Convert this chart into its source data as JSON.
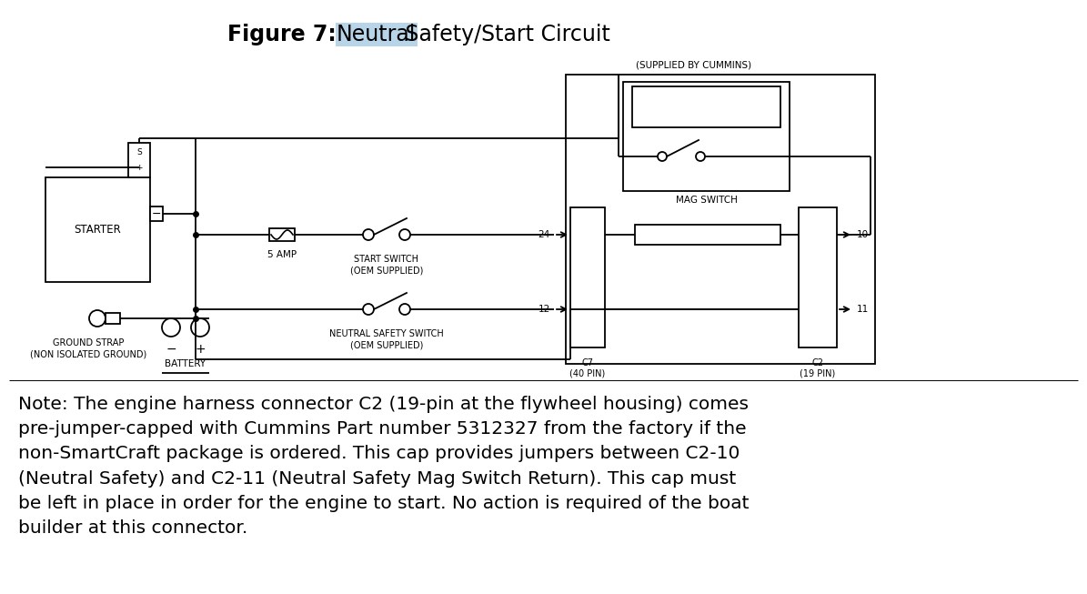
{
  "bg_color": "#ffffff",
  "line_color": "#000000",
  "highlight_color": "#b8d4e8",
  "note_text": "Note: The engine harness connector C2 (19-pin at the flywheel housing) comes\npre-jumper-capped with Cummins Part number 5312327 from the factory if the\nnon-SmartCraft package is ordered. This cap provides jumpers between C2-10\n(Neutral Safety) and C2-11 (Neutral Safety Mag Switch Return). This cap must\nbe left in place in order for the engine to start. No action is required of the boat\nbuilder at this connector.",
  "supplied_label": "(SUPPLIED BY CUMMINS)",
  "mag_switch_label": "MAG SWITCH",
  "starter_label": "STARTER",
  "ground_strap_label": "GROUND STRAP\n(NON ISOLATED GROUND)",
  "battery_label": "BATTERY",
  "amp_label": "5 AMP",
  "start_switch_label": "START SWITCH\n(OEM SUPPLIED)",
  "neutral_safety_label": "NEUTRAL SAFETY SWITCH\n(OEM SUPPLIED)",
  "c7_label": "C7\n(40 PIN)",
  "c2_label": "C2\n(19 PIN)",
  "pin24_label": "24",
  "pin12_label": "12",
  "pin10_label": "10",
  "pin11_label": "11"
}
